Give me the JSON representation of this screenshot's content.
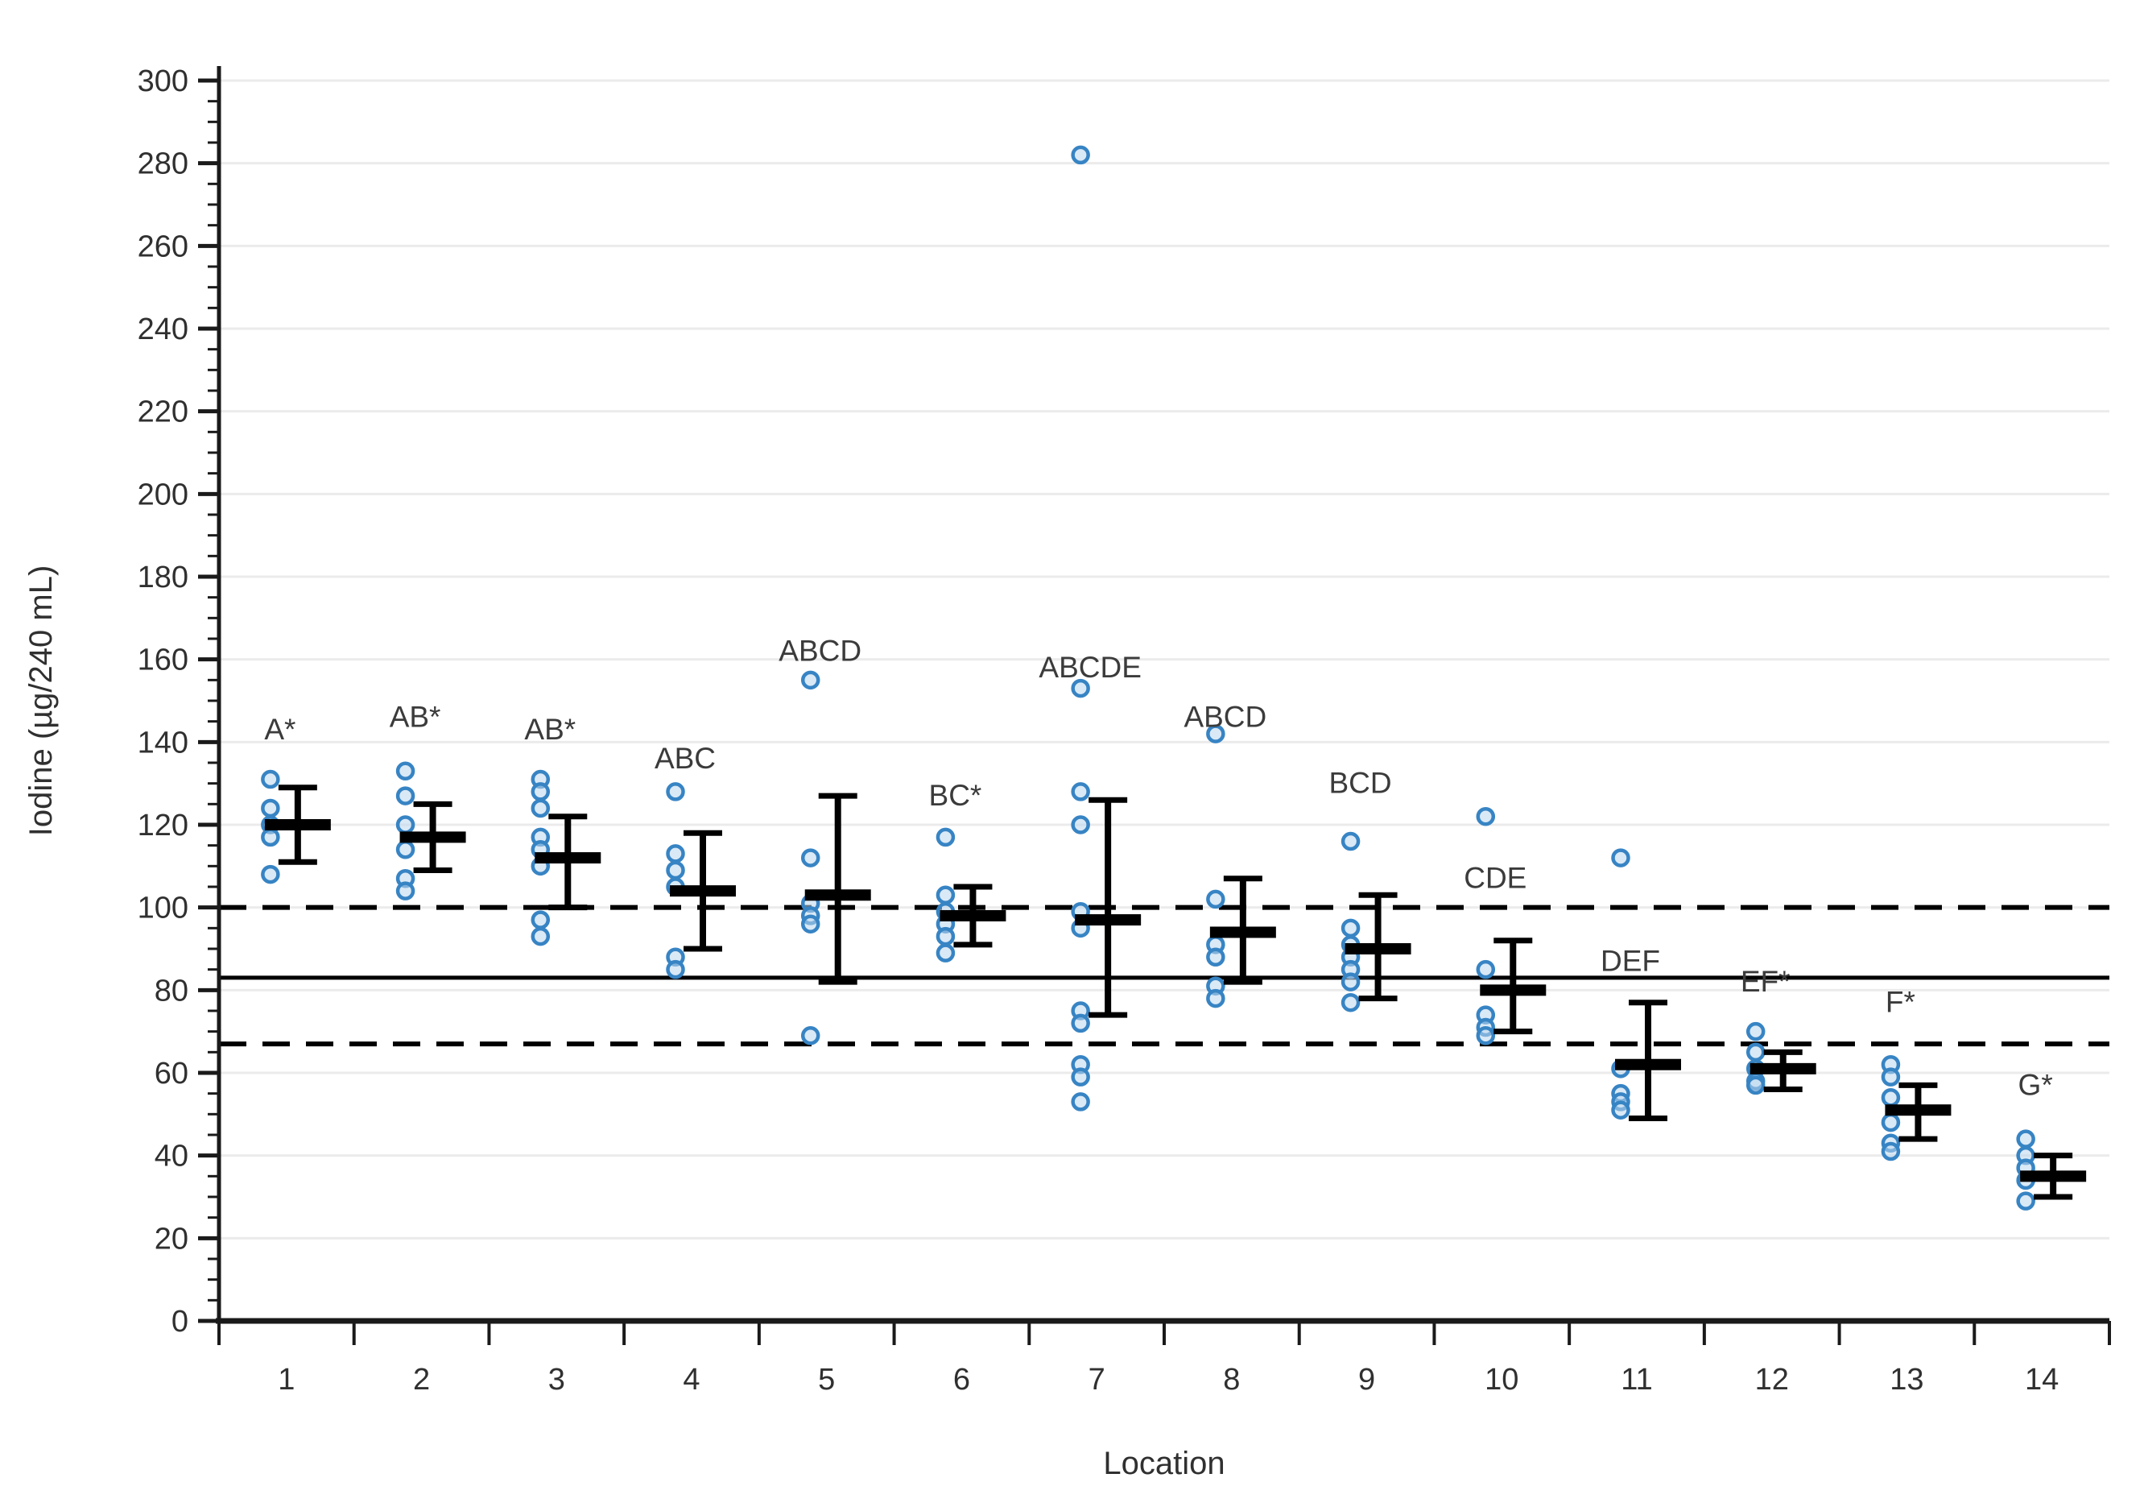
{
  "chart_data": {
    "type": "scatter",
    "title": "",
    "xlabel": "Location",
    "ylabel": "Iodine (µg/240 mL)",
    "ylim": [
      0,
      300
    ],
    "y_tick_step": 20,
    "y_minor_step": 5,
    "grid": true,
    "legend": "none",
    "categories": [
      "1",
      "2",
      "3",
      "4",
      "5",
      "6",
      "7",
      "8",
      "9",
      "10",
      "11",
      "12",
      "13",
      "14"
    ],
    "reference_lines": [
      {
        "name": "upper-dashed",
        "value": 100,
        "style": "dashed"
      },
      {
        "name": "mean-solid",
        "value": 83,
        "style": "solid"
      },
      {
        "name": "lower-dashed",
        "value": 67,
        "style": "dashed"
      }
    ],
    "series": [
      {
        "location": "1",
        "sig_label": "A*",
        "sig_label_y": 143,
        "points": [
          131,
          124,
          120,
          117,
          108
        ],
        "mean": 120,
        "ci": [
          111,
          129
        ]
      },
      {
        "location": "2",
        "sig_label": "AB*",
        "sig_label_y": 146,
        "points": [
          133,
          127,
          120,
          114,
          107,
          104
        ],
        "mean": 117,
        "ci": [
          109,
          125
        ]
      },
      {
        "location": "3",
        "sig_label": "AB*",
        "sig_label_y": 143,
        "points": [
          131,
          128,
          124,
          117,
          114,
          110,
          97,
          93
        ],
        "mean": 112,
        "ci": [
          100,
          122
        ]
      },
      {
        "location": "4",
        "sig_label": "ABC",
        "sig_label_y": 136,
        "points": [
          128,
          113,
          109,
          105,
          88,
          85
        ],
        "mean": 104,
        "ci": [
          90,
          118
        ]
      },
      {
        "location": "5",
        "sig_label": "ABCD",
        "sig_label_y": 162,
        "points": [
          155,
          112,
          101,
          98,
          96,
          69
        ],
        "mean": 103,
        "ci": [
          82,
          127
        ]
      },
      {
        "location": "6",
        "sig_label": "BC*",
        "sig_label_y": 127,
        "points": [
          117,
          103,
          99,
          96,
          93,
          89
        ],
        "mean": 98,
        "ci": [
          91,
          105
        ]
      },
      {
        "location": "7",
        "sig_label": "ABCDE",
        "sig_label_y": 158,
        "points": [
          282,
          153,
          128,
          120,
          99,
          95,
          75,
          72,
          62,
          59,
          53
        ],
        "mean": 97,
        "ci": [
          74,
          126
        ]
      },
      {
        "location": "8",
        "sig_label": "ABCD",
        "sig_label_y": 146,
        "points": [
          142,
          102,
          91,
          88,
          81,
          78
        ],
        "mean": 94,
        "ci": [
          82,
          107
        ]
      },
      {
        "location": "9",
        "sig_label": "BCD",
        "sig_label_y": 130,
        "points": [
          116,
          95,
          91,
          88,
          85,
          82,
          77
        ],
        "mean": 90,
        "ci": [
          78,
          103
        ]
      },
      {
        "location": "10",
        "sig_label": "CDE",
        "sig_label_y": 107,
        "points": [
          122,
          85,
          74,
          71,
          69
        ],
        "mean": 80,
        "ci": [
          70,
          92
        ]
      },
      {
        "location": "11",
        "sig_label": "DEF",
        "sig_label_y": 87,
        "points": [
          112,
          61,
          55,
          53,
          51
        ],
        "mean": 62,
        "ci": [
          49,
          77
        ]
      },
      {
        "location": "12",
        "sig_label": "EF*",
        "sig_label_y": 82,
        "points": [
          70,
          65,
          61,
          58,
          57
        ],
        "mean": 61,
        "ci": [
          56,
          65
        ]
      },
      {
        "location": "13",
        "sig_label": "F*",
        "sig_label_y": 77,
        "points": [
          62,
          59,
          54,
          48,
          43,
          41
        ],
        "mean": 51,
        "ci": [
          44,
          57
        ]
      },
      {
        "location": "14",
        "sig_label": "G*",
        "sig_label_y": 57,
        "points": [
          44,
          40,
          37,
          34,
          29
        ],
        "mean": 35,
        "ci": [
          30,
          40
        ]
      }
    ],
    "colors": {
      "point_stroke": "#3784C4",
      "point_fill": "#BCD7EE",
      "marker": "#000000",
      "gridline": "#EBEBEB",
      "axis": "#1a1a1a",
      "tick_text": "#303030",
      "sig_text": "#3b3b3b"
    }
  }
}
